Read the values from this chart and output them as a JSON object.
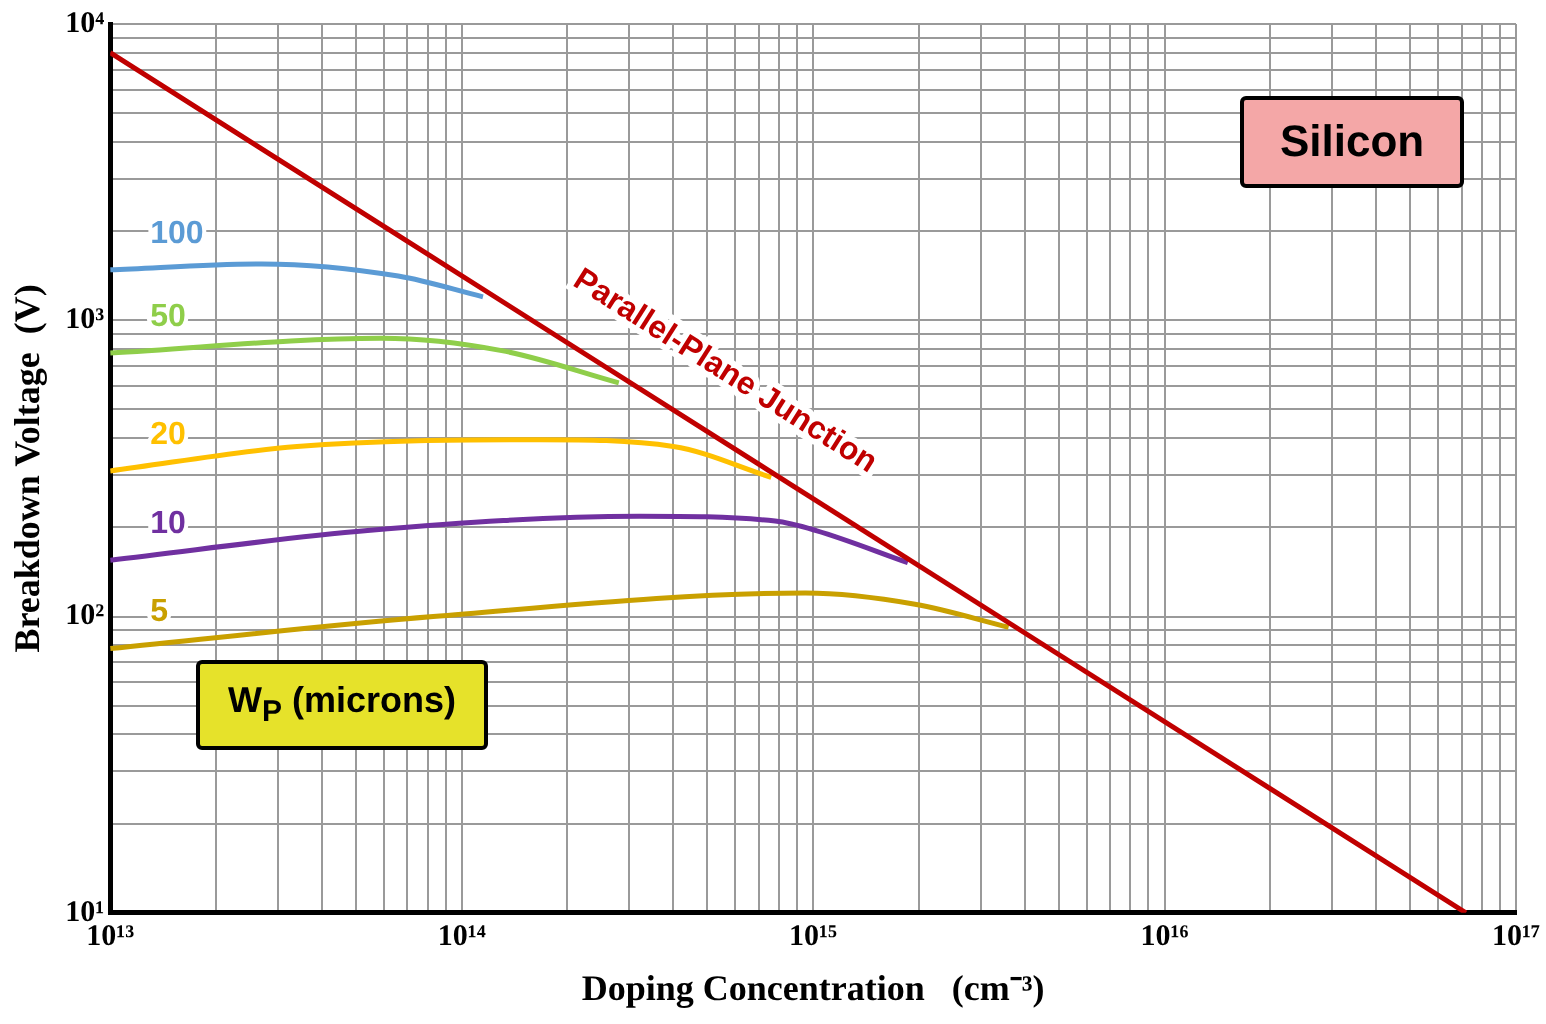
{
  "chart_data": {
    "type": "line",
    "xlabel": "Doping Concentration   (cm⁻³)",
    "ylabel": "Breakdown Voltage  (V)",
    "log": "xy",
    "grid": true,
    "legend": false,
    "marker": "none",
    "line_style": "solid",
    "xlim": [
      10000000000000.0,
      1e+17
    ],
    "ylim": [
      10,
      10000
    ],
    "xticks": [
      {
        "value": 10000000000000.0,
        "label": "10¹³"
      },
      {
        "value": 20000000000000.0,
        "label": null
      },
      {
        "value": 30000000000000.0,
        "label": null
      },
      {
        "value": 40000000000000.0,
        "label": null
      },
      {
        "value": 50000000000000.0,
        "label": null
      },
      {
        "value": 60000000000000.0,
        "label": null
      },
      {
        "value": 70000000000000.0,
        "label": null
      },
      {
        "value": 80000000000000.0,
        "label": null
      },
      {
        "value": 90000000000000.0,
        "label": null
      },
      {
        "value": 100000000000000.0,
        "label": "10¹⁴"
      },
      {
        "value": 200000000000000.0,
        "label": null
      },
      {
        "value": 300000000000000.0,
        "label": null
      },
      {
        "value": 400000000000000.0,
        "label": null
      },
      {
        "value": 500000000000000.0,
        "label": null
      },
      {
        "value": 600000000000000.0,
        "label": null
      },
      {
        "value": 700000000000000.0,
        "label": null
      },
      {
        "value": 800000000000000.0,
        "label": null
      },
      {
        "value": 900000000000000.0,
        "label": null
      },
      {
        "value": 1000000000000000.0,
        "label": "10¹⁵"
      },
      {
        "value": 2000000000000000.0,
        "label": null
      },
      {
        "value": 3000000000000000.0,
        "label": null
      },
      {
        "value": 4000000000000000.0,
        "label": null
      },
      {
        "value": 5000000000000000.0,
        "label": null
      },
      {
        "value": 6000000000000000.0,
        "label": null
      },
      {
        "value": 7000000000000000.0,
        "label": null
      },
      {
        "value": 8000000000000000.0,
        "label": null
      },
      {
        "value": 9000000000000000.0,
        "label": null
      },
      {
        "value": 1e+16,
        "label": "10¹⁶"
      },
      {
        "value": 2e+16,
        "label": null
      },
      {
        "value": 3e+16,
        "label": null
      },
      {
        "value": 4e+16,
        "label": null
      },
      {
        "value": 5e+16,
        "label": null
      },
      {
        "value": 6e+16,
        "label": null
      },
      {
        "value": 7e+16,
        "label": null
      },
      {
        "value": 8e+16,
        "label": null
      },
      {
        "value": 9e+16,
        "label": null
      },
      {
        "value": 1e+17,
        "label": "10¹⁷"
      }
    ],
    "yticks": [
      {
        "value": 10,
        "label": "10¹"
      },
      {
        "value": 20,
        "label": null
      },
      {
        "value": 30,
        "label": null
      },
      {
        "value": 40,
        "label": null
      },
      {
        "value": 50,
        "label": null
      },
      {
        "value": 60,
        "label": null
      },
      {
        "value": 70,
        "label": null
      },
      {
        "value": 80,
        "label": null
      },
      {
        "value": 90,
        "label": null
      },
      {
        "value": 100,
        "label": "10²"
      },
      {
        "value": 200,
        "label": null
      },
      {
        "value": 300,
        "label": null
      },
      {
        "value": 400,
        "label": null
      },
      {
        "value": 500,
        "label": null
      },
      {
        "value": 600,
        "label": null
      },
      {
        "value": 700,
        "label": null
      },
      {
        "value": 800,
        "label": null
      },
      {
        "value": 900,
        "label": null
      },
      {
        "value": 1000,
        "label": "10³"
      },
      {
        "value": 2000,
        "label": null
      },
      {
        "value": 3000,
        "label": null
      },
      {
        "value": 4000,
        "label": null
      },
      {
        "value": 5000,
        "label": null
      },
      {
        "value": 6000,
        "label": null
      },
      {
        "value": 7000,
        "label": null
      },
      {
        "value": 8000,
        "label": null
      },
      {
        "value": 9000,
        "label": null
      },
      {
        "value": 10000,
        "label": "10⁴"
      }
    ],
    "annotations": [
      "Silicon",
      "W$_{P}$ (microns)"
    ],
    "series": [
      {
        "name": "Parallel-Plane Junction",
        "color": "#c00000",
        "x": [
          10000000000000.0,
          7.2e+16
        ],
        "values": [
          8000,
          10
        ]
      },
      {
        "name": "100",
        "color": "#5b9bd5",
        "x": [
          10000000000000.0,
          27000000000000.0,
          66000000000000.0,
          115000000000000.0
        ],
        "values": [
          1480,
          1550,
          1410,
          1200
        ]
      },
      {
        "name": "50",
        "color": "#8fce4a",
        "x": [
          10000000000000.0,
          59000000000000.0,
          130000000000000.0,
          280000000000000.0
        ],
        "values": [
          775,
          870,
          790,
          615
        ]
      },
      {
        "name": "20",
        "color": "#ffc000",
        "x": [
          10000000000000.0,
          34000000000000.0,
          166000000000000.0,
          400000000000000.0,
          760000000000000.0
        ],
        "values": [
          310,
          375,
          395,
          375,
          295
        ]
      },
      {
        "name": "10",
        "color": "#7030a0",
        "x": [
          10000000000000.0,
          54000000000000.0,
          320000000000000.0,
          780000000000000.0,
          1020000000000000.0,
          1860000000000000.0
        ],
        "values": [
          155,
          195,
          218,
          210,
          195,
          152
        ]
      },
      {
        "name": "5",
        "color": "#c9a000",
        "x": [
          10000000000000.0,
          83000000000000.0,
          950000000000000.0,
          1950000000000000.0,
          3600000000000000.0
        ],
        "values": [
          78,
          100,
          120,
          110,
          92
        ]
      }
    ]
  }
}
